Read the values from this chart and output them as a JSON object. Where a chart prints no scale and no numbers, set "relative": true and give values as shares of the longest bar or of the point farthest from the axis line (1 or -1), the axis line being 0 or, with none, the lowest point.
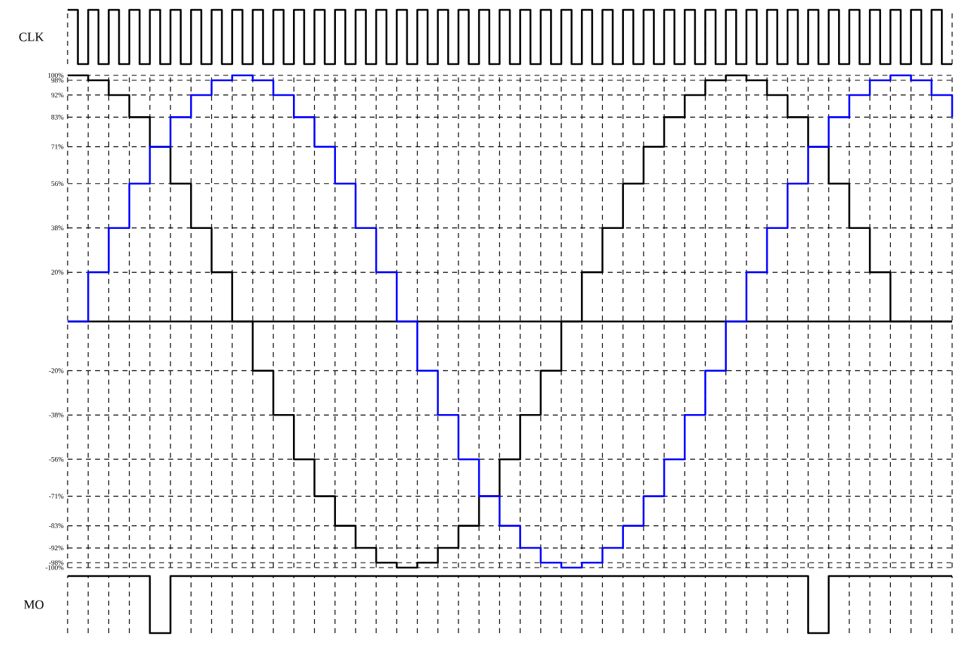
{
  "chart_data": [
    {
      "type": "step",
      "ylabel": "CLK",
      "relative": true,
      "color": "#000000",
      "grid": "x",
      "tick_labels": false,
      "categories": [
        null,
        null,
        null,
        null,
        null,
        null,
        null,
        null,
        null,
        null,
        null,
        null,
        null,
        null,
        null,
        null,
        null,
        null,
        null,
        null,
        null,
        null,
        null,
        null,
        null,
        null,
        null,
        null,
        null,
        null,
        null,
        null,
        null,
        null,
        null,
        null,
        null,
        null,
        null,
        null,
        null,
        null,
        null,
        null,
        null,
        null,
        null,
        null,
        null,
        null,
        null,
        null,
        null,
        null,
        null,
        null,
        null,
        null,
        null,
        null,
        null,
        null,
        null,
        null,
        null,
        null,
        null,
        null,
        null,
        null,
        null,
        null,
        null,
        null,
        null,
        null,
        null,
        null,
        null,
        null,
        null,
        null,
        null,
        null,
        null,
        null,
        null
      ],
      "values": [
        1,
        0,
        1,
        0,
        1,
        0,
        1,
        0,
        1,
        0,
        1,
        0,
        1,
        0,
        1,
        0,
        1,
        0,
        1,
        0,
        1,
        0,
        1,
        0,
        1,
        0,
        1,
        0,
        1,
        0,
        1,
        0,
        1,
        0,
        1,
        0,
        1,
        0,
        1,
        0,
        1,
        0,
        1,
        0,
        1,
        0,
        1,
        0,
        1,
        0,
        1,
        0,
        1,
        0,
        1,
        0,
        1,
        0,
        1,
        0,
        1,
        0,
        1,
        0,
        1,
        0,
        1,
        0,
        1,
        0,
        1,
        0,
        1,
        0,
        1,
        0,
        1,
        0,
        1,
        0,
        1,
        0,
        1,
        0,
        1,
        0,
        0
      ]
    },
    {
      "type": "step",
      "grid": true,
      "tick_labels": "y",
      "ylim": [
        -100,
        100
      ],
      "yticks": [
        {
          "value": 100,
          "label": "100%"
        },
        {
          "value": 98,
          "label": "98%"
        },
        {
          "value": 92,
          "label": "92%"
        },
        {
          "value": 83,
          "label": "83%"
        },
        {
          "value": 71,
          "label": "71%"
        },
        {
          "value": 56,
          "label": "56%"
        },
        {
          "value": 38,
          "label": "38%"
        },
        {
          "value": 20,
          "label": "20%"
        },
        {
          "value": -20,
          "label": "-20%"
        },
        {
          "value": -38,
          "label": "-38%"
        },
        {
          "value": -56,
          "label": "-56%"
        },
        {
          "value": -71,
          "label": "-71%"
        },
        {
          "value": -83,
          "label": "-83%"
        },
        {
          "value": -92,
          "label": "-92%"
        },
        {
          "value": -98,
          "label": "-98%"
        },
        {
          "value": -100,
          "label": "-100%"
        }
      ],
      "ref_lines": [
        {
          "axis": "y",
          "value": 0,
          "color": "#000000"
        }
      ],
      "categories": [
        null,
        null,
        null,
        null,
        null,
        null,
        null,
        null,
        null,
        null,
        null,
        null,
        null,
        null,
        null,
        null,
        null,
        null,
        null,
        null,
        null,
        null,
        null,
        null,
        null,
        null,
        null,
        null,
        null,
        null,
        null,
        null,
        null,
        null,
        null,
        null,
        null,
        null,
        null,
        null,
        null,
        null,
        null,
        null
      ],
      "series": [
        {
          "color": "#000000",
          "values": [
            100,
            98,
            92,
            83,
            71,
            56,
            38,
            20,
            0,
            -20,
            -38,
            -56,
            -71,
            -83,
            -92,
            -98,
            -100,
            -98,
            -92,
            -83,
            -71,
            -56,
            -38,
            -20,
            0,
            20,
            38,
            56,
            71,
            83,
            92,
            98,
            100,
            98,
            92,
            83,
            71,
            56,
            38,
            20,
            0,
            0,
            0,
            0
          ]
        },
        {
          "color": "#0000ff",
          "values": [
            0,
            20,
            38,
            56,
            71,
            83,
            92,
            98,
            100,
            98,
            92,
            83,
            71,
            56,
            38,
            20,
            0,
            -20,
            -38,
            -56,
            -71,
            -83,
            -92,
            -98,
            -100,
            -98,
            -92,
            -83,
            -71,
            -56,
            -38,
            -20,
            0,
            20,
            38,
            56,
            71,
            83,
            92,
            98,
            100,
            98,
            92,
            83
          ]
        }
      ]
    },
    {
      "type": "step",
      "ylabel": "MO",
      "relative": true,
      "color": "#000000",
      "grid": "x",
      "tick_labels": false,
      "categories": [
        null,
        null,
        null,
        null,
        null,
        null,
        null,
        null,
        null,
        null,
        null,
        null,
        null,
        null,
        null,
        null,
        null,
        null,
        null,
        null,
        null,
        null,
        null,
        null,
        null,
        null,
        null,
        null,
        null,
        null,
        null,
        null,
        null,
        null,
        null,
        null,
        null,
        null,
        null,
        null,
        null,
        null,
        null,
        null
      ],
      "values": [
        1,
        1,
        1,
        1,
        0,
        1,
        1,
        1,
        1,
        1,
        1,
        1,
        1,
        1,
        1,
        1,
        1,
        1,
        1,
        1,
        1,
        1,
        1,
        1,
        1,
        1,
        1,
        1,
        1,
        1,
        1,
        1,
        1,
        1,
        1,
        1,
        0,
        1,
        1,
        1,
        1,
        1,
        1,
        1
      ]
    }
  ]
}
